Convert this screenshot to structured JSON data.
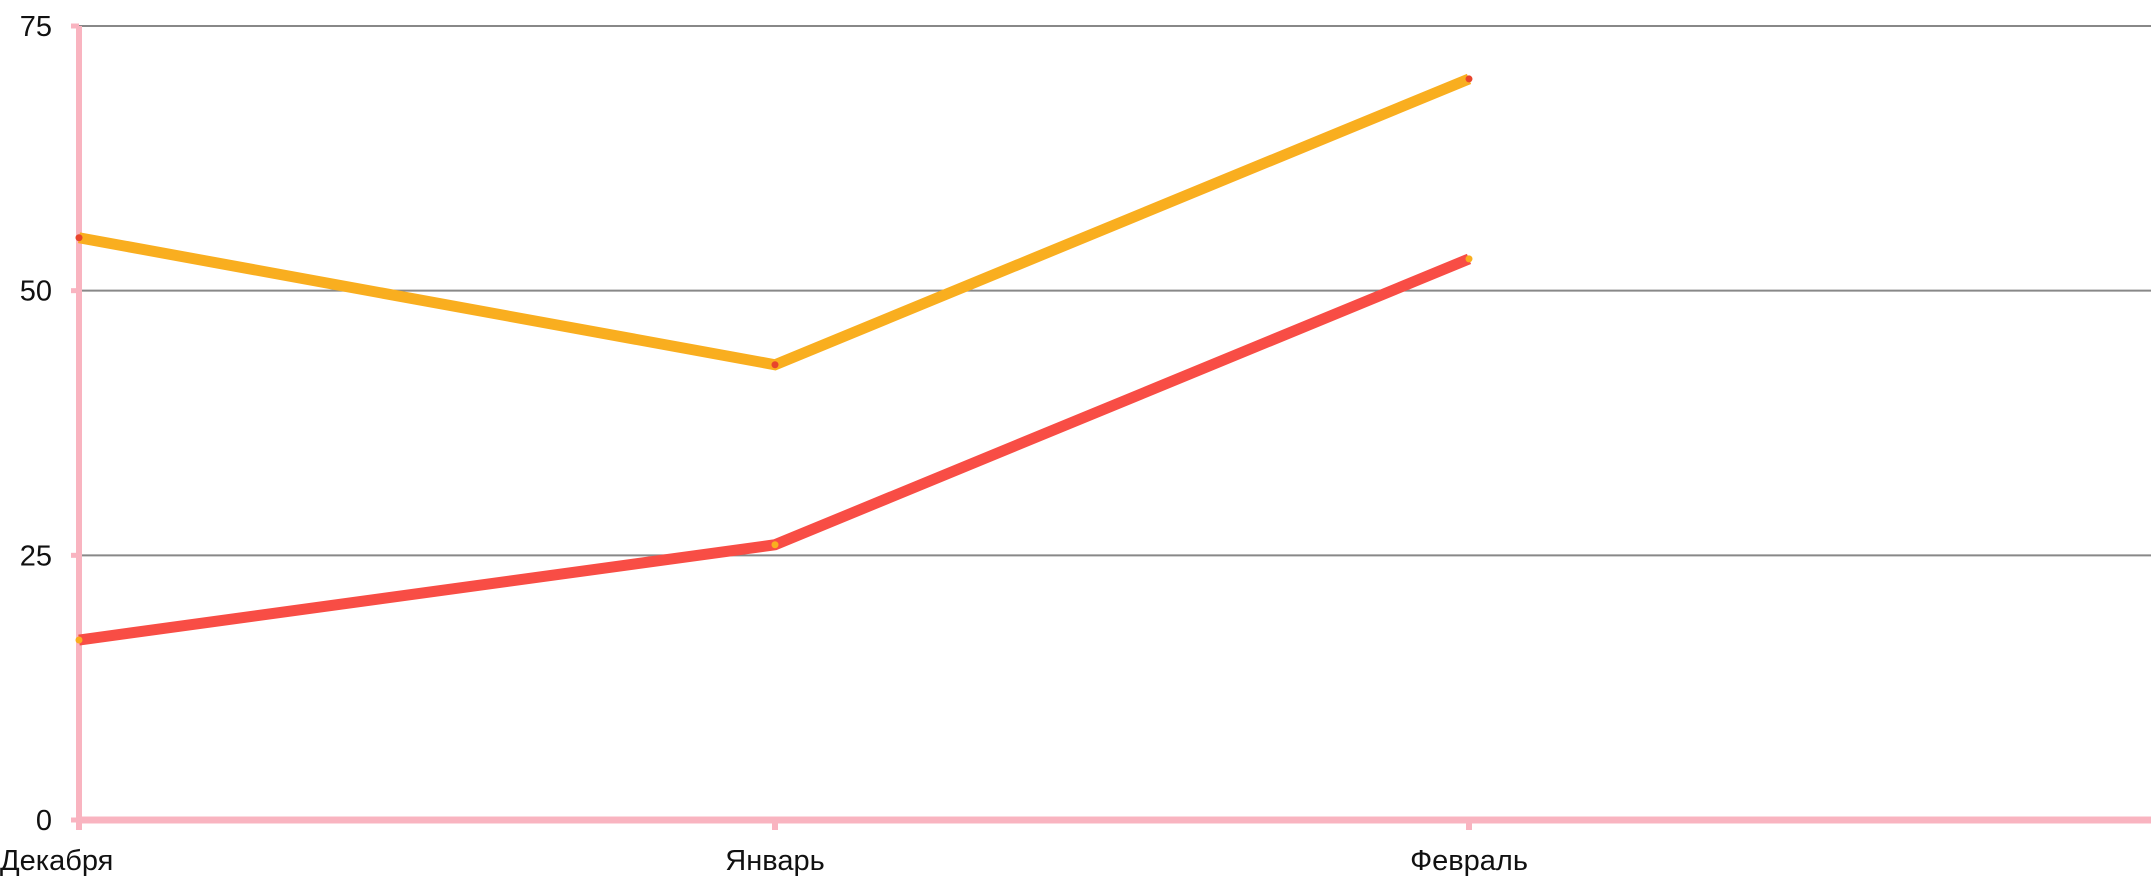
{
  "chart_data": {
    "type": "line",
    "categories": [
      "Декабря",
      "Январь",
      "Февраль"
    ],
    "series": [
      {
        "values": [
          55,
          43,
          70
        ],
        "color": "#F9AE1F",
        "marker_color": "#E8452C"
      },
      {
        "values": [
          17,
          26,
          53
        ],
        "color": "#F84D45",
        "marker_color": "#F9AE1F"
      }
    ],
    "ylim": [
      0,
      75
    ],
    "yticks": [
      "0",
      "25",
      "50",
      "75"
    ],
    "grid": true,
    "axis_color": "#F9B4C0",
    "grid_color": "#888888",
    "legend": "none"
  }
}
